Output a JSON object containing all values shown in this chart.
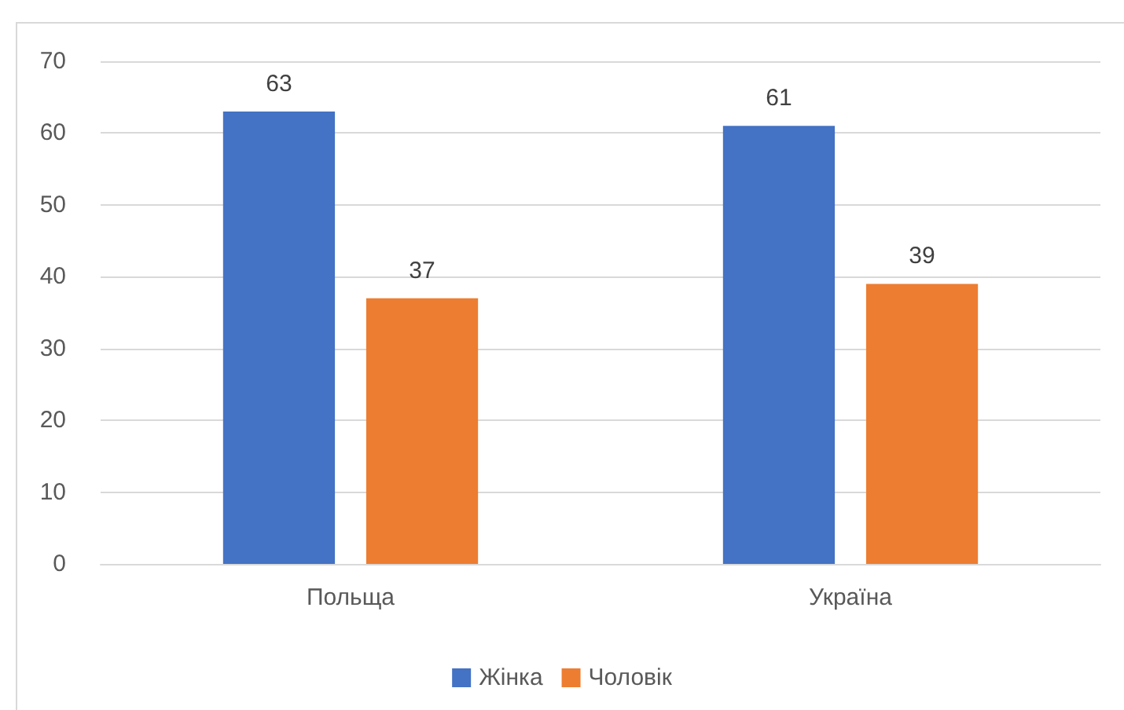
{
  "chart_data": {
    "type": "bar",
    "categories": [
      "Польща",
      "Україна"
    ],
    "series": [
      {
        "name": "Жінка",
        "color": "#4472c4",
        "values": [
          63,
          61
        ]
      },
      {
        "name": "Чоловік",
        "color": "#ed7d31",
        "values": [
          37,
          39
        ]
      }
    ],
    "ylim": [
      0,
      70
    ],
    "yticks": [
      0,
      10,
      20,
      30,
      40,
      50,
      60,
      70
    ],
    "grid": "y",
    "legend": "bottom",
    "data_labels": true
  }
}
